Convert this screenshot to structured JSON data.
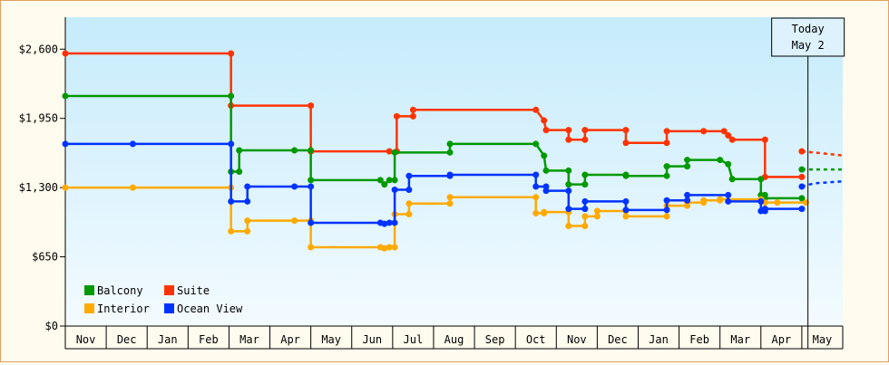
{
  "chart_data": {
    "type": "line",
    "title": "",
    "xlabel": "",
    "ylabel": "",
    "ylim": [
      0,
      2900
    ],
    "yticks": [
      0,
      650,
      1300,
      1950,
      2600
    ],
    "ytick_labels": [
      "$0",
      "$650",
      "$1,300",
      "$1,950",
      "$2,600"
    ],
    "month_labels": [
      "Nov",
      "Dec",
      "Jan",
      "Feb",
      "Mar",
      "Apr",
      "May",
      "Jun",
      "Jul",
      "Aug",
      "Sep",
      "Oct",
      "Nov",
      "Dec",
      "Jan",
      "Feb",
      "Mar",
      "Apr",
      "May"
    ],
    "today_marker": {
      "line1": "Today",
      "line2": "May 2",
      "x": 18.15
    },
    "legend_position": "bottom-left",
    "grid": false,
    "series": [
      {
        "name": "Suite",
        "color": "#ff3300",
        "points": [
          [
            0,
            2560
          ],
          [
            4.05,
            2560
          ],
          [
            4.05,
            2070
          ],
          [
            6,
            2070
          ],
          [
            6,
            1640
          ],
          [
            7.92,
            1640
          ],
          [
            8.1,
            1640
          ],
          [
            8.1,
            1970
          ],
          [
            8.5,
            1970
          ],
          [
            8.5,
            2030
          ],
          [
            11.5,
            2030
          ],
          [
            11.7,
            1930
          ],
          [
            11.75,
            1840
          ],
          [
            12.3,
            1840
          ],
          [
            12.3,
            1750
          ],
          [
            12.7,
            1750
          ],
          [
            12.7,
            1840
          ],
          [
            13.7,
            1840
          ],
          [
            13.7,
            1720
          ],
          [
            14.7,
            1720
          ],
          [
            14.7,
            1830
          ],
          [
            15.6,
            1830
          ],
          [
            15.6,
            1830
          ],
          [
            16.1,
            1830
          ],
          [
            16.2,
            1790
          ],
          [
            16.3,
            1750
          ],
          [
            17.1,
            1750
          ],
          [
            17.1,
            1400
          ],
          [
            18.0,
            1400
          ]
        ],
        "forecast": [
          [
            18.0,
            1640
          ],
          [
            18.3,
            1630
          ],
          [
            19.05,
            1600
          ]
        ]
      },
      {
        "name": "Balcony",
        "color": "#009900",
        "points": [
          [
            0,
            2160
          ],
          [
            4.05,
            2160
          ],
          [
            4.05,
            1450
          ],
          [
            4.25,
            1450
          ],
          [
            4.25,
            1650
          ],
          [
            5.6,
            1650
          ],
          [
            6,
            1650
          ],
          [
            6,
            1370
          ],
          [
            7.7,
            1370
          ],
          [
            7.8,
            1330
          ],
          [
            7.92,
            1370
          ],
          [
            8.05,
            1370
          ],
          [
            8.05,
            1630
          ],
          [
            9.4,
            1630
          ],
          [
            9.4,
            1710
          ],
          [
            11.5,
            1710
          ],
          [
            11.7,
            1600
          ],
          [
            11.75,
            1460
          ],
          [
            12.3,
            1460
          ],
          [
            12.3,
            1330
          ],
          [
            12.7,
            1330
          ],
          [
            12.7,
            1420
          ],
          [
            13.7,
            1420
          ],
          [
            13.7,
            1410
          ],
          [
            14.7,
            1410
          ],
          [
            14.7,
            1500
          ],
          [
            15.2,
            1500
          ],
          [
            15.2,
            1560
          ],
          [
            16.0,
            1560
          ],
          [
            16.2,
            1520
          ],
          [
            16.3,
            1380
          ],
          [
            17.0,
            1380
          ],
          [
            17.0,
            1230
          ],
          [
            17.1,
            1230
          ],
          [
            17.1,
            1200
          ],
          [
            18.0,
            1200
          ]
        ],
        "forecast": [
          [
            18.0,
            1470
          ],
          [
            19.05,
            1470
          ]
        ]
      },
      {
        "name": "Interior",
        "color": "#ffaa00",
        "points": [
          [
            0,
            1300
          ],
          [
            1.65,
            1300
          ],
          [
            4.05,
            1300
          ],
          [
            4.05,
            890
          ],
          [
            4.45,
            890
          ],
          [
            4.45,
            990
          ],
          [
            5.6,
            990
          ],
          [
            6,
            990
          ],
          [
            6,
            740
          ],
          [
            7.7,
            740
          ],
          [
            7.8,
            730
          ],
          [
            7.92,
            740
          ],
          [
            8.05,
            740
          ],
          [
            8.05,
            1050
          ],
          [
            8.4,
            1050
          ],
          [
            8.4,
            1150
          ],
          [
            9.4,
            1150
          ],
          [
            9.4,
            1210
          ],
          [
            11.5,
            1210
          ],
          [
            11.5,
            1060
          ],
          [
            11.7,
            1060
          ],
          [
            11.7,
            1070
          ],
          [
            12.3,
            1070
          ],
          [
            12.3,
            940
          ],
          [
            12.7,
            940
          ],
          [
            12.7,
            1030
          ],
          [
            13.0,
            1030
          ],
          [
            13.0,
            1080
          ],
          [
            13.7,
            1080
          ],
          [
            13.7,
            1030
          ],
          [
            14.7,
            1030
          ],
          [
            14.7,
            1130
          ],
          [
            15.2,
            1130
          ],
          [
            15.2,
            1160
          ],
          [
            15.6,
            1160
          ],
          [
            15.6,
            1180
          ],
          [
            16.0,
            1180
          ],
          [
            16.0,
            1190
          ],
          [
            17.0,
            1190
          ],
          [
            17.1,
            1160
          ],
          [
            17.4,
            1160
          ],
          [
            18.1,
            1160
          ]
        ]
      },
      {
        "name": "Ocean View",
        "color": "#0033ff",
        "points": [
          [
            0,
            1710
          ],
          [
            1.65,
            1710
          ],
          [
            4.05,
            1710
          ],
          [
            4.05,
            1170
          ],
          [
            4.45,
            1170
          ],
          [
            4.45,
            1310
          ],
          [
            5.6,
            1310
          ],
          [
            6,
            1310
          ],
          [
            6,
            970
          ],
          [
            7.7,
            970
          ],
          [
            7.8,
            960
          ],
          [
            7.92,
            970
          ],
          [
            8.05,
            970
          ],
          [
            8.05,
            1280
          ],
          [
            8.4,
            1280
          ],
          [
            8.4,
            1410
          ],
          [
            9.4,
            1410
          ],
          [
            9.4,
            1420
          ],
          [
            11.5,
            1420
          ],
          [
            11.5,
            1310
          ],
          [
            11.75,
            1310
          ],
          [
            11.75,
            1270
          ],
          [
            12.3,
            1270
          ],
          [
            12.3,
            1100
          ],
          [
            12.7,
            1100
          ],
          [
            12.7,
            1170
          ],
          [
            13.7,
            1170
          ],
          [
            13.7,
            1090
          ],
          [
            14.7,
            1090
          ],
          [
            14.7,
            1180
          ],
          [
            15.2,
            1180
          ],
          [
            15.2,
            1230
          ],
          [
            16.2,
            1230
          ],
          [
            16.2,
            1170
          ],
          [
            17.0,
            1170
          ],
          [
            17.0,
            1080
          ],
          [
            17.1,
            1080
          ],
          [
            17.1,
            1100
          ],
          [
            18.0,
            1100
          ]
        ],
        "forecast": [
          [
            18.0,
            1310
          ],
          [
            18.3,
            1340
          ],
          [
            19.05,
            1360
          ]
        ]
      }
    ],
    "legend": [
      {
        "label": "Balcony",
        "color": "#009900"
      },
      {
        "label": "Suite",
        "color": "#ff3300"
      },
      {
        "label": "Interior",
        "color": "#ffaa00"
      },
      {
        "label": "Ocean View",
        "color": "#0033ff"
      }
    ]
  }
}
